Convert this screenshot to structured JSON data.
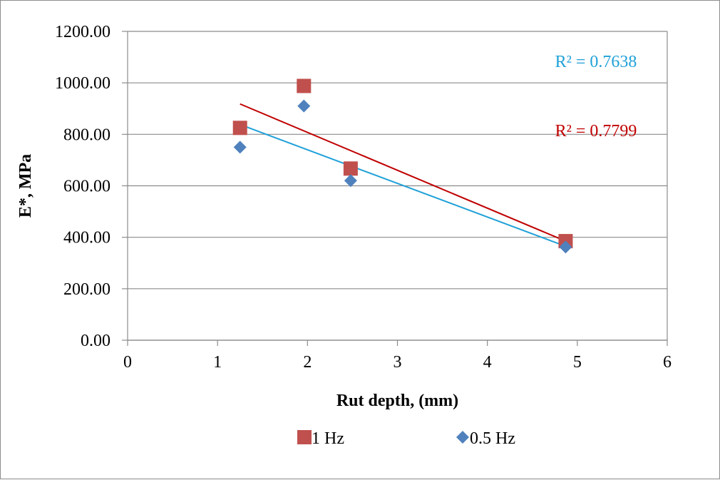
{
  "chart_data": {
    "type": "scatter",
    "xlabel": "Rut depth, (mm)",
    "ylabel": "E*, MPa",
    "xlim": [
      0,
      6
    ],
    "ylim": [
      0,
      1200
    ],
    "x_ticks": [
      "0",
      "1",
      "2",
      "3",
      "4",
      "5",
      "6"
    ],
    "y_ticks": [
      "0.00",
      "200.00",
      "400.00",
      "600.00",
      "800.00",
      "1000.00",
      "1200.00"
    ],
    "grid": "horizontal",
    "legend_position": "bottom",
    "series": [
      {
        "name": "1 Hz",
        "marker": "square",
        "color": "#c0504d",
        "points": [
          [
            1.25,
            825
          ],
          [
            1.96,
            988
          ],
          [
            2.48,
            667
          ],
          [
            4.87,
            385
          ]
        ],
        "trendline": {
          "type": "linear",
          "color": "#c00000",
          "x_range": [
            1.25,
            4.87
          ],
          "y_range": [
            918,
            385
          ],
          "r2_label": "R² = 0.7799"
        }
      },
      {
        "name": "0.5 Hz",
        "marker": "diamond",
        "color": "#4f81bd",
        "points": [
          [
            1.25,
            750
          ],
          [
            1.96,
            910
          ],
          [
            2.48,
            620
          ],
          [
            4.87,
            362
          ]
        ],
        "trendline": {
          "type": "linear",
          "color": "#1fa0d8",
          "x_range": [
            1.25,
            4.87
          ],
          "y_range": [
            838,
            365
          ],
          "r2_label": "R² = 0.7638"
        }
      }
    ]
  }
}
